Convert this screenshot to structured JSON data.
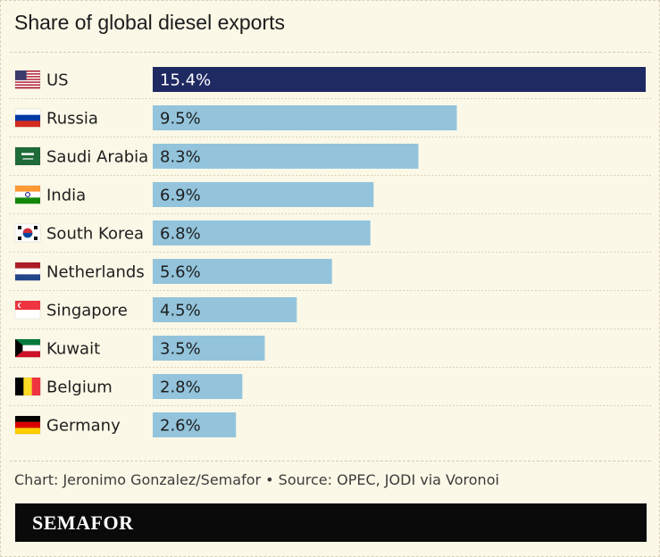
{
  "title": "Share of global diesel exports",
  "source": "Chart: Jeronimo Gonzalez/Semafor • Source: OPEC, JODI via Voronoi",
  "brand": "SEMAFOR",
  "colors": {
    "background": "#fbf8e7",
    "highlight_bar": "#1f2a63",
    "bar": "#93c4dc",
    "highlight_text": "#ffffff",
    "text": "#1e1e1e",
    "brand_bar": "#0a0a0a"
  },
  "chart_data": {
    "type": "bar",
    "orientation": "horizontal",
    "categories": [
      "US",
      "Russia",
      "Saudi Arabia",
      "India",
      "South Korea",
      "Netherlands",
      "Singapore",
      "Kuwait",
      "Belgium",
      "Germany"
    ],
    "values": [
      15.4,
      9.5,
      8.3,
      6.9,
      6.8,
      5.6,
      4.5,
      3.5,
      2.8,
      2.6
    ],
    "value_labels": [
      "15.4%",
      "9.5%",
      "8.3%",
      "6.9%",
      "6.8%",
      "5.6%",
      "4.5%",
      "3.5%",
      "2.8%",
      "2.6%"
    ],
    "flags": [
      "us-flag-icon",
      "russia-flag-icon",
      "saudi-arabia-flag-icon",
      "india-flag-icon",
      "south-korea-flag-icon",
      "netherlands-flag-icon",
      "singapore-flag-icon",
      "kuwait-flag-icon",
      "belgium-flag-icon",
      "germany-flag-icon"
    ],
    "highlight_index": 0,
    "xlim": [
      0,
      15.4
    ],
    "grid": false,
    "legend": "none"
  }
}
